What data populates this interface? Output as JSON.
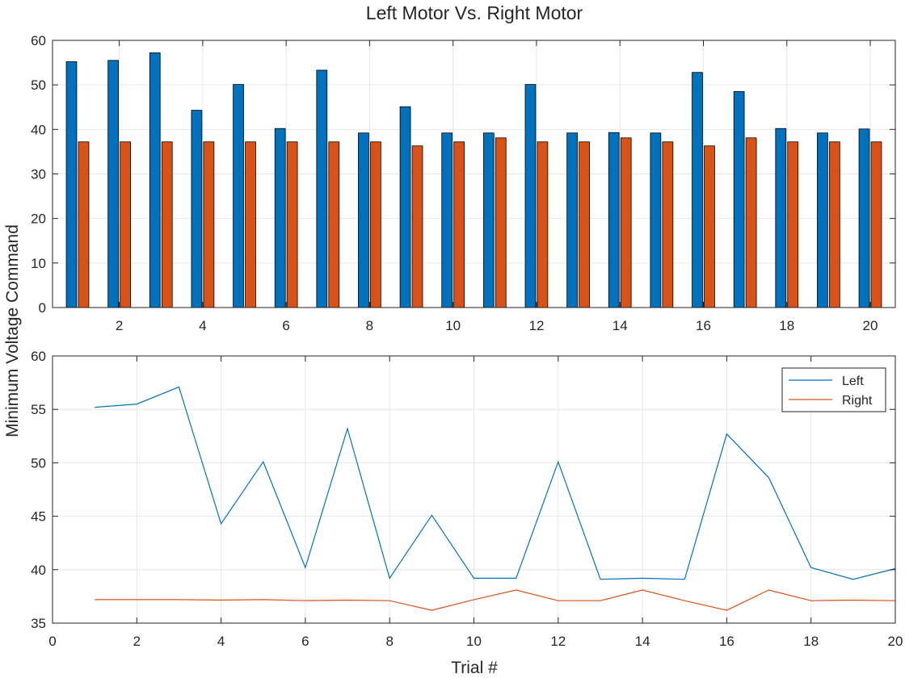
{
  "chart_data": {
    "title": "Left Motor Vs. Right Motor",
    "shared_ylabel": "Minimum Voltage Command",
    "colors": {
      "left": "#0072BD",
      "right": "#D95319",
      "grid": "#e6e6e6",
      "axis": "#262626"
    },
    "charts": [
      {
        "type": "bar",
        "trials": [
          1,
          2,
          3,
          4,
          5,
          6,
          7,
          8,
          9,
          10,
          11,
          12,
          13,
          14,
          15,
          16,
          17,
          18,
          19,
          20
        ],
        "series": [
          {
            "values": [
              55.2,
              55.5,
              57.2,
              44.3,
              50.1,
              40.2,
              53.3,
              39.2,
              45.1,
              39.2,
              39.2,
              50.1,
              39.2,
              39.3,
              39.2,
              52.8,
              48.5,
              40.2,
              39.2,
              40.1
            ]
          },
          {
            "values": [
              37.2,
              37.2,
              37.2,
              37.2,
              37.2,
              37.2,
              37.2,
              37.2,
              36.3,
              37.2,
              38.1,
              37.2,
              37.2,
              38.1,
              37.2,
              36.3,
              38.1,
              37.2,
              37.2,
              37.2
            ]
          }
        ],
        "xlim": [
          0.4,
          20.6
        ],
        "ylim": [
          0,
          60
        ],
        "yticks": [
          0,
          10,
          20,
          30,
          40,
          50,
          60
        ],
        "xticks": [
          2,
          4,
          6,
          8,
          10,
          12,
          14,
          16,
          18,
          20
        ],
        "grid": true
      },
      {
        "type": "line",
        "x": [
          1,
          2,
          3,
          4,
          5,
          6,
          7,
          8,
          9,
          10,
          11,
          12,
          13,
          14,
          15,
          16,
          17,
          18,
          19,
          20
        ],
        "series": [
          {
            "name": "Left",
            "values": [
              55.2,
              55.5,
              57.1,
              44.3,
              50.1,
              40.2,
              53.2,
              39.2,
              45.1,
              39.2,
              39.2,
              50.1,
              39.1,
              39.2,
              39.1,
              52.7,
              48.6,
              40.2,
              39.1,
              40.1
            ]
          },
          {
            "name": "Right",
            "values": [
              37.2,
              37.2,
              37.2,
              37.15,
              37.2,
              37.1,
              37.15,
              37.1,
              36.2,
              37.2,
              38.1,
              37.1,
              37.1,
              38.1,
              37.1,
              36.2,
              38.1,
              37.1,
              37.15,
              37.1
            ]
          }
        ],
        "xlim": [
          0,
          20
        ],
        "ylim": [
          35,
          60
        ],
        "yticks": [
          35,
          40,
          45,
          50,
          55,
          60
        ],
        "xticks": [
          0,
          2,
          4,
          6,
          8,
          10,
          12,
          14,
          16,
          18,
          20
        ],
        "xlabel": "Trial #",
        "legend": "top-right",
        "grid": true
      }
    ]
  }
}
